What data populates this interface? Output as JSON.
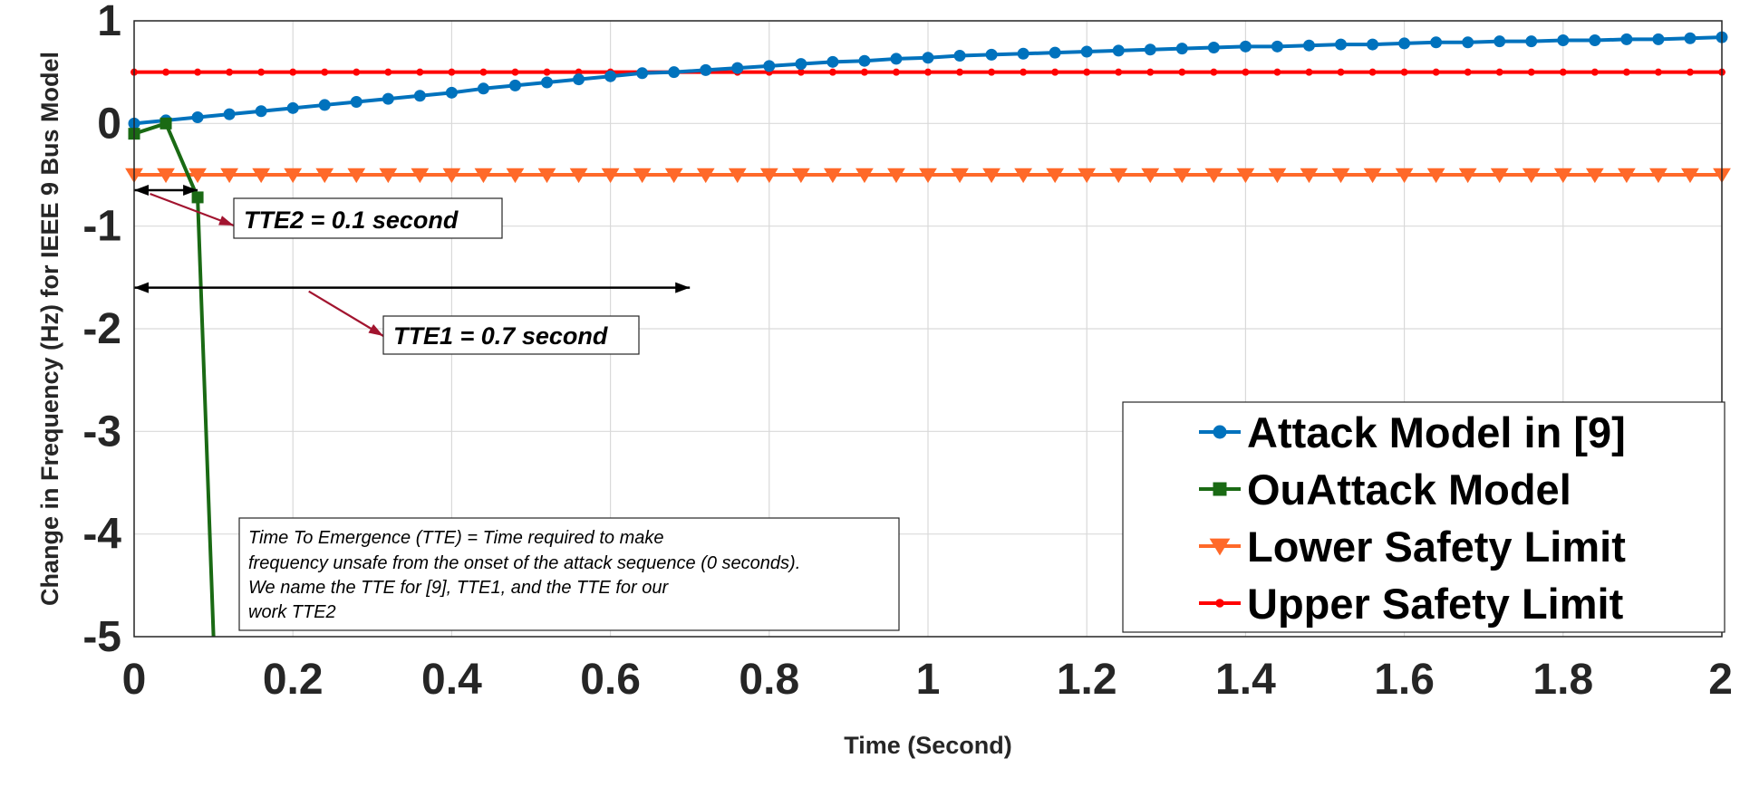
{
  "chart_data": {
    "type": "line",
    "title": "",
    "xlabel": "Time (Second)",
    "ylabel": "Change in Frequency (Hz) for IEEE 9 Bus Model",
    "xlim": [
      0,
      2
    ],
    "ylim": [
      -5,
      1
    ],
    "xticks": [
      0,
      0.2,
      0.4,
      0.6,
      0.8,
      1,
      1.2,
      1.4,
      1.6,
      1.8,
      2
    ],
    "xtick_labels": [
      "0",
      "0.2",
      "0.4",
      "0.6",
      "0.8",
      "1",
      "1.2",
      "1.4",
      "1.6",
      "1.8",
      "2"
    ],
    "yticks": [
      1,
      0,
      -1,
      -2,
      -3,
      -4,
      -5
    ],
    "ytick_labels": [
      "1",
      "0",
      "-1",
      "-2",
      "-3",
      "-4",
      "-5"
    ],
    "grid": true,
    "legend_position": "bottom-right",
    "series": [
      {
        "name": "Attack Model in [9]",
        "color": "#0072BD",
        "marker": "circle",
        "x": [
          0,
          0.04,
          0.08,
          0.12,
          0.16,
          0.2,
          0.24,
          0.28,
          0.32,
          0.36,
          0.4,
          0.44,
          0.48,
          0.52,
          0.56,
          0.6,
          0.64,
          0.68,
          0.72,
          0.76,
          0.8,
          0.84,
          0.88,
          0.92,
          0.96,
          1.0,
          1.04,
          1.08,
          1.12,
          1.16,
          1.2,
          1.24,
          1.28,
          1.32,
          1.36,
          1.4,
          1.44,
          1.48,
          1.52,
          1.56,
          1.6,
          1.64,
          1.68,
          1.72,
          1.76,
          1.8,
          1.84,
          1.88,
          1.92,
          1.96,
          2.0
        ],
        "y": [
          0.0,
          0.03,
          0.06,
          0.09,
          0.12,
          0.15,
          0.18,
          0.21,
          0.24,
          0.27,
          0.3,
          0.34,
          0.37,
          0.4,
          0.43,
          0.46,
          0.49,
          0.5,
          0.52,
          0.54,
          0.56,
          0.58,
          0.6,
          0.61,
          0.63,
          0.64,
          0.66,
          0.67,
          0.68,
          0.69,
          0.7,
          0.71,
          0.72,
          0.73,
          0.74,
          0.75,
          0.75,
          0.76,
          0.77,
          0.77,
          0.78,
          0.79,
          0.79,
          0.8,
          0.8,
          0.81,
          0.81,
          0.82,
          0.82,
          0.83,
          0.84
        ]
      },
      {
        "name": "OuAttack Model",
        "color": "#1A6A14",
        "marker": "square",
        "x": [
          0,
          0.04,
          0.08,
          0.1
        ],
        "y": [
          -0.1,
          0.0,
          -0.72,
          -5.0
        ]
      },
      {
        "name": "Lower Safety Limit",
        "color": "#FF6929",
        "marker": "triangle-down",
        "x": [
          0,
          0.04,
          0.08,
          0.12,
          0.16,
          0.2,
          0.24,
          0.28,
          0.32,
          0.36,
          0.4,
          0.44,
          0.48,
          0.52,
          0.56,
          0.6,
          0.64,
          0.68,
          0.72,
          0.76,
          0.8,
          0.84,
          0.88,
          0.92,
          0.96,
          1.0,
          1.04,
          1.08,
          1.12,
          1.16,
          1.2,
          1.24,
          1.28,
          1.32,
          1.36,
          1.4,
          1.44,
          1.48,
          1.52,
          1.56,
          1.6,
          1.64,
          1.68,
          1.72,
          1.76,
          1.8,
          1.84,
          1.88,
          1.92,
          1.96,
          2.0
        ],
        "y": [
          -0.5,
          -0.5,
          -0.5,
          -0.5,
          -0.5,
          -0.5,
          -0.5,
          -0.5,
          -0.5,
          -0.5,
          -0.5,
          -0.5,
          -0.5,
          -0.5,
          -0.5,
          -0.5,
          -0.5,
          -0.5,
          -0.5,
          -0.5,
          -0.5,
          -0.5,
          -0.5,
          -0.5,
          -0.5,
          -0.5,
          -0.5,
          -0.5,
          -0.5,
          -0.5,
          -0.5,
          -0.5,
          -0.5,
          -0.5,
          -0.5,
          -0.5,
          -0.5,
          -0.5,
          -0.5,
          -0.5,
          -0.5,
          -0.5,
          -0.5,
          -0.5,
          -0.5,
          -0.5,
          -0.5,
          -0.5,
          -0.5,
          -0.5,
          -0.5
        ]
      },
      {
        "name": "Upper Safety Limit",
        "color": "#FF0000",
        "marker": "dot",
        "x": [
          0,
          0.04,
          0.08,
          0.12,
          0.16,
          0.2,
          0.24,
          0.28,
          0.32,
          0.36,
          0.4,
          0.44,
          0.48,
          0.52,
          0.56,
          0.6,
          0.64,
          0.68,
          0.72,
          0.76,
          0.8,
          0.84,
          0.88,
          0.92,
          0.96,
          1.0,
          1.04,
          1.08,
          1.12,
          1.16,
          1.2,
          1.24,
          1.28,
          1.32,
          1.36,
          1.4,
          1.44,
          1.48,
          1.52,
          1.56,
          1.6,
          1.64,
          1.68,
          1.72,
          1.76,
          1.8,
          1.84,
          1.88,
          1.92,
          1.96,
          2.0
        ],
        "y": [
          0.5,
          0.5,
          0.5,
          0.5,
          0.5,
          0.5,
          0.5,
          0.5,
          0.5,
          0.5,
          0.5,
          0.5,
          0.5,
          0.5,
          0.5,
          0.5,
          0.5,
          0.5,
          0.5,
          0.5,
          0.5,
          0.5,
          0.5,
          0.5,
          0.5,
          0.5,
          0.5,
          0.5,
          0.5,
          0.5,
          0.5,
          0.5,
          0.5,
          0.5,
          0.5,
          0.5,
          0.5,
          0.5,
          0.5,
          0.5,
          0.5,
          0.5,
          0.5,
          0.5,
          0.5,
          0.5,
          0.5,
          0.5,
          0.5,
          0.5,
          0.5
        ]
      }
    ],
    "annotations": [
      {
        "id": "tte2",
        "text": "TTE2 = 0.1 second",
        "span_x": [
          0,
          0.08
        ],
        "span_y": -0.65,
        "points_to": [
          0.02,
          -0.65
        ]
      },
      {
        "id": "tte1",
        "text": "TTE1 = 0.7 second",
        "span_x": [
          0,
          0.7
        ],
        "span_y": -1.6,
        "points_to": [
          0.22,
          -1.6
        ]
      }
    ],
    "note_lines": [
      "Time To Emergence (TTE) = Time required to make",
      "frequency unsafe from the onset of the attack sequence (0 seconds).",
      "We name the TTE for  [9], TTE1, and the TTE for our",
      "work TTE2"
    ],
    "annotation_arrow_color": "#A2142F"
  }
}
